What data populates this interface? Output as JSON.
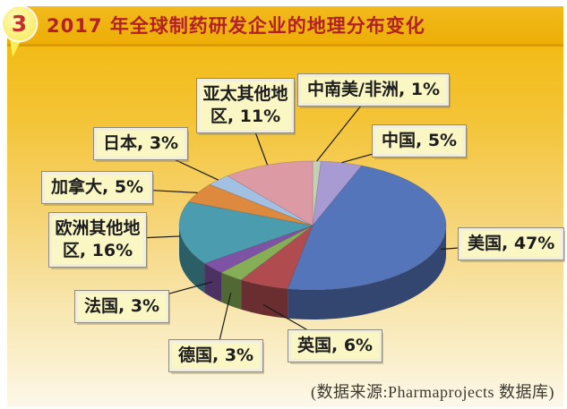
{
  "badge": {
    "number": "3"
  },
  "header": {
    "title": "2017 年全球制药研发企业的地理分布变化"
  },
  "footer": {
    "source_note": "(数据来源:Pharmaprojects 数据库)"
  },
  "colors": {
    "header_bg": "#efb30d",
    "title_text": "#b32025",
    "background_top": "#f2bb17",
    "background_bottom": "#fcf8ea",
    "label_box_bg": "#fbf7c5",
    "badge_number": "#c8302b",
    "leader_line": "#1a1a1a"
  },
  "chart_data": {
    "type": "pie",
    "style": "3d",
    "title": "2017 年全球制药研发企业的地理分布变化",
    "unit": "percent",
    "start_angle_deg": 0,
    "direction": "clockwise",
    "legend_position": "callout-labels",
    "slices": [
      {
        "id": "latin-america-africa",
        "label": "中南美/非洲",
        "value": 1,
        "display": "中南美/非洲, 1%",
        "color": "#c6cfb3"
      },
      {
        "id": "china",
        "label": "中国",
        "value": 5,
        "display": "中国, 5%",
        "color": "#a89bd4"
      },
      {
        "id": "usa",
        "label": "美国",
        "value": 47,
        "display": "美国, 47%",
        "color": "#5575ba"
      },
      {
        "id": "uk",
        "label": "英国",
        "value": 6,
        "display": "英国, 6%",
        "color": "#b04b50"
      },
      {
        "id": "germany",
        "label": "德国",
        "value": 3,
        "display": "德国, 3%",
        "color": "#85ae57"
      },
      {
        "id": "france",
        "label": "法国",
        "value": 3,
        "display": "法国, 3%",
        "color": "#7e52a5"
      },
      {
        "id": "other-europe",
        "label": "欧洲其他地区",
        "value": 16,
        "display": "欧洲其他地区, 16%",
        "color": "#4a9cae"
      },
      {
        "id": "canada",
        "label": "加拿大",
        "value": 5,
        "display": "加拿大, 5%",
        "color": "#dd8a3e"
      },
      {
        "id": "japan",
        "label": "日本",
        "value": 3,
        "display": "日本, 3%",
        "color": "#a2c0e2"
      },
      {
        "id": "other-asia-pacific",
        "label": "亚太其他地区",
        "value": 11,
        "display": "亚太其他地区, 11%",
        "color": "#db9aa4"
      }
    ]
  }
}
